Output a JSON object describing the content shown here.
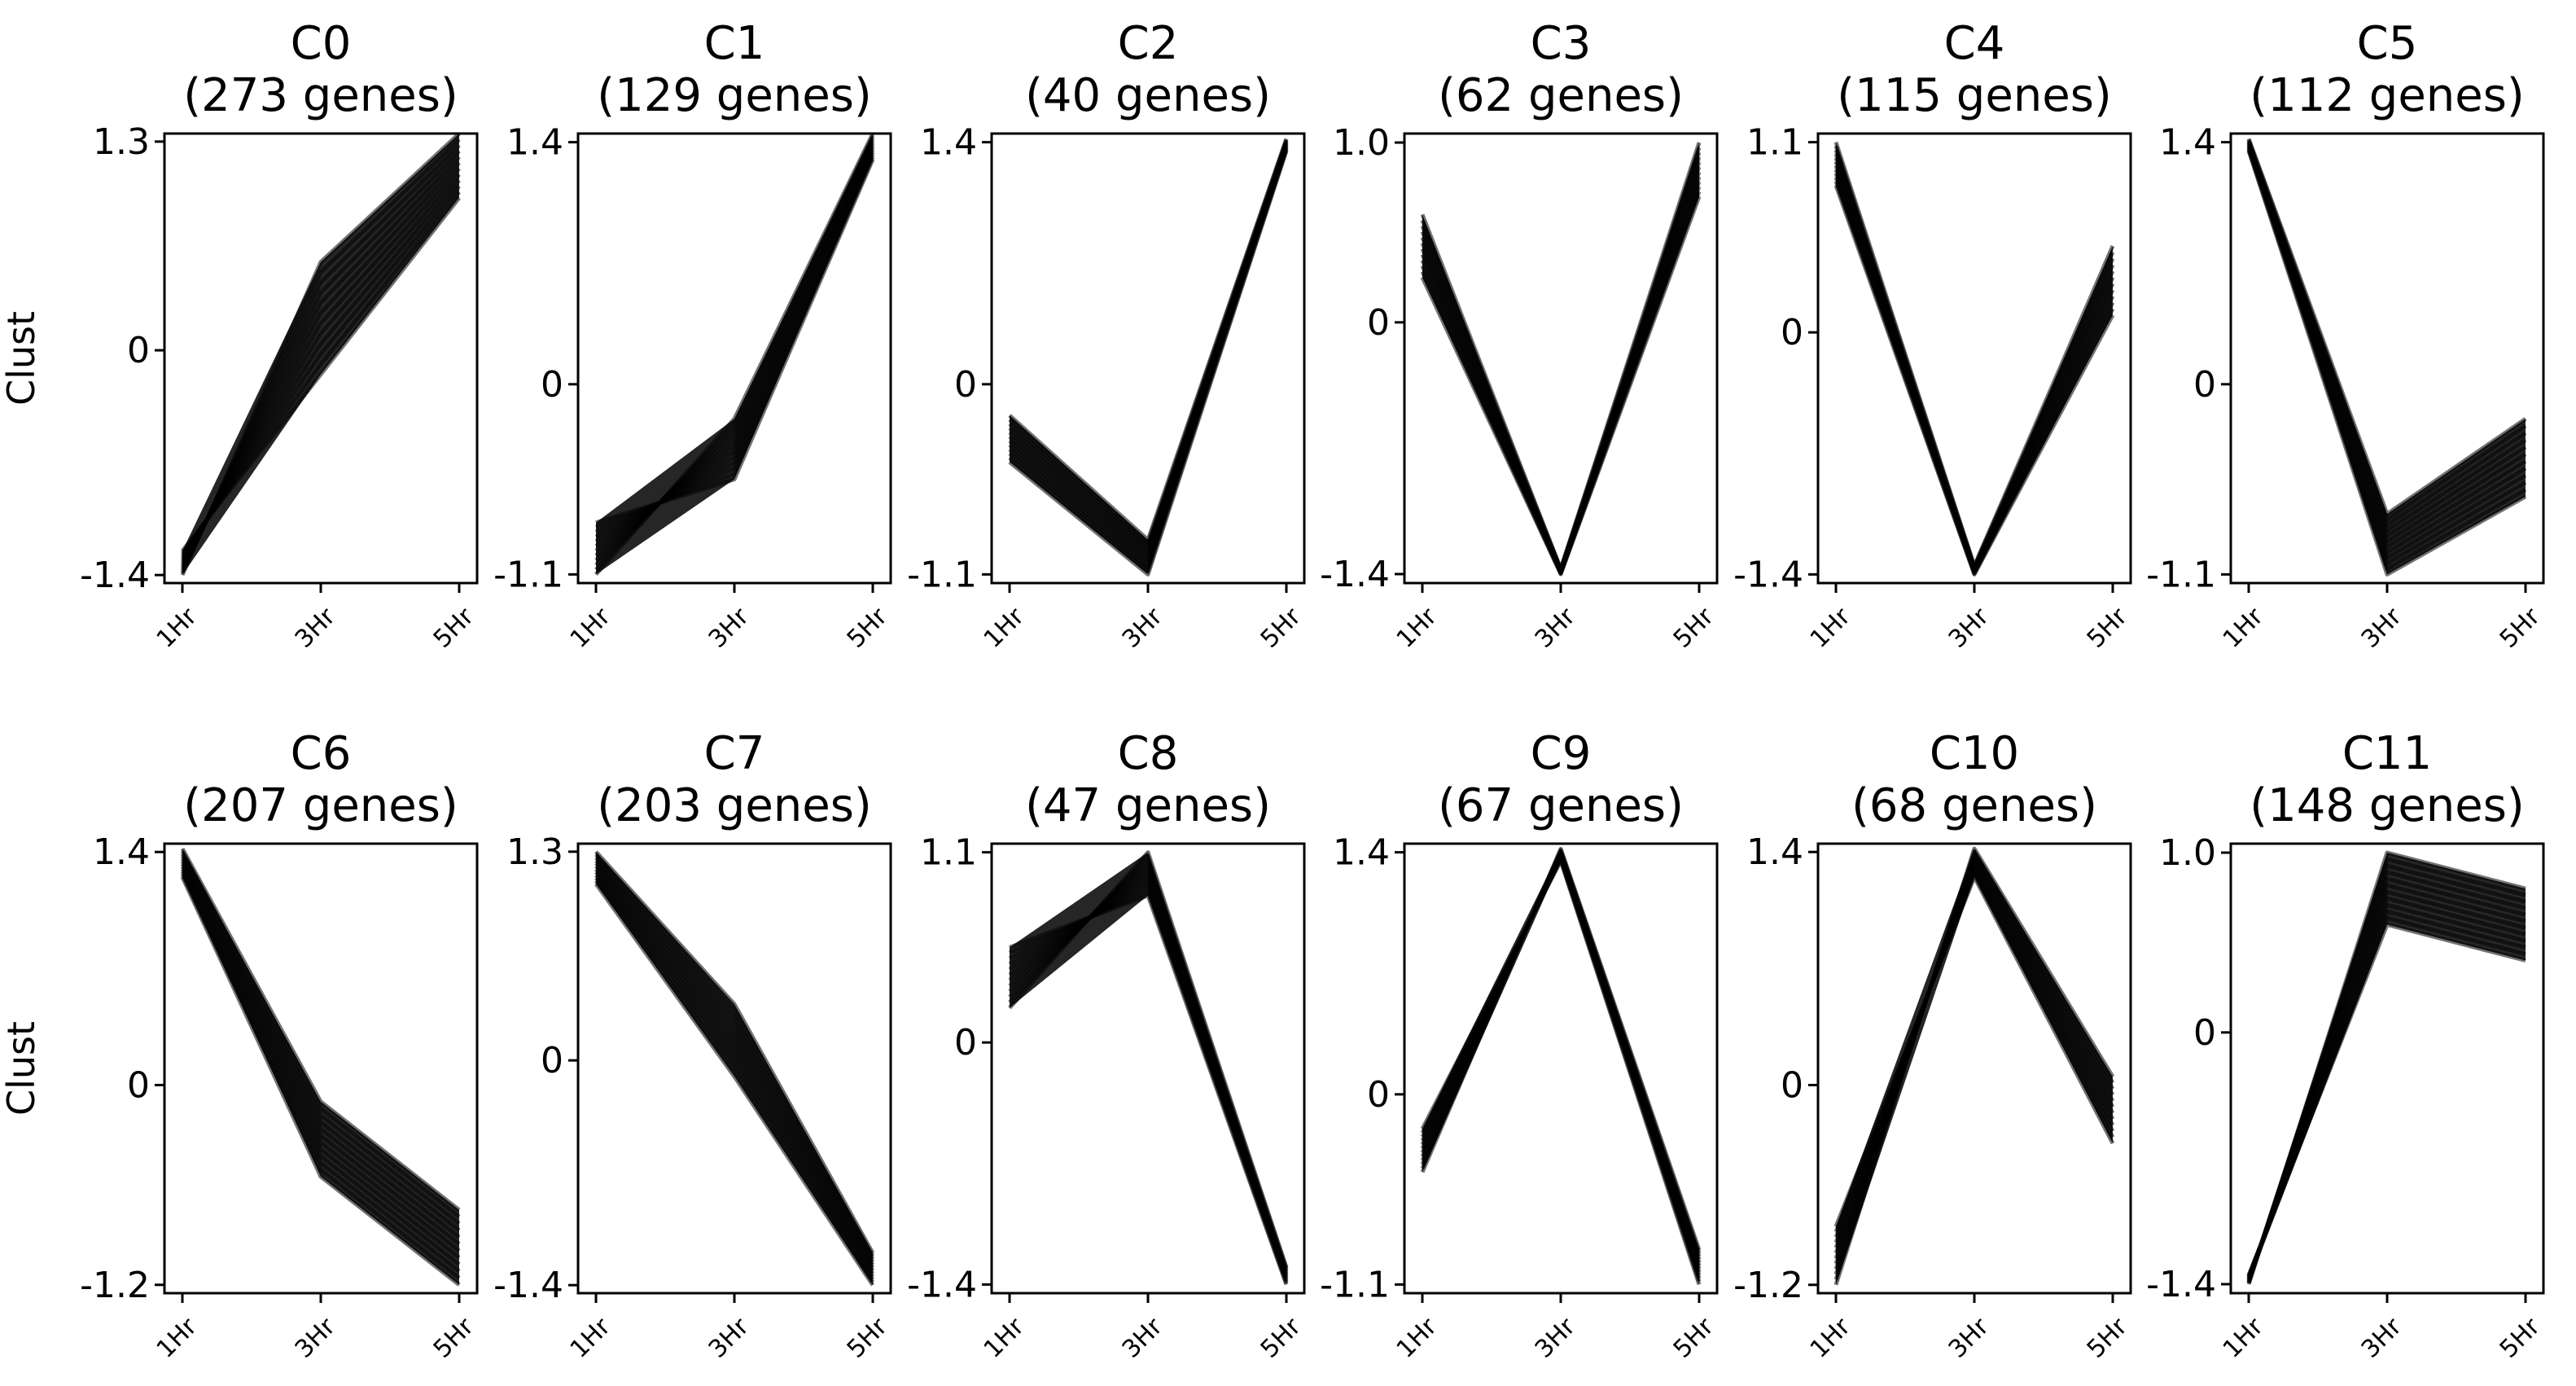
{
  "chart_data": [
    {
      "type": "line",
      "cluster": "C0",
      "gene_count": "(273 genes)",
      "ylabel": "Clust",
      "categories": [
        "1Hr",
        "3Hr",
        "5Hr"
      ],
      "yticks": [
        "1.3",
        "0",
        "-1.4"
      ],
      "ylim": [
        -1.45,
        1.35
      ],
      "envelope": {
        "low": [
          -1.4,
          -0.15,
          0.95
        ],
        "high": [
          -1.25,
          0.55,
          1.35
        ]
      },
      "colors": {
        "line": "#000000",
        "frame": "#000000"
      }
    },
    {
      "type": "line",
      "cluster": "C1",
      "gene_count": "(129 genes)",
      "ylabel": "",
      "categories": [
        "1Hr",
        "3Hr",
        "5Hr"
      ],
      "yticks": [
        "1.4",
        "0",
        "-1.1"
      ],
      "ylim": [
        -1.15,
        1.45
      ],
      "envelope": {
        "low": [
          -1.1,
          -0.55,
          1.3
        ],
        "high": [
          -0.8,
          -0.2,
          1.45
        ]
      },
      "colors": {
        "line": "#000000",
        "frame": "#000000"
      }
    },
    {
      "type": "line",
      "cluster": "C2",
      "gene_count": "(40 genes)",
      "ylabel": "",
      "categories": [
        "1Hr",
        "3Hr",
        "5Hr"
      ],
      "yticks": [
        "1.4",
        "0",
        "-1.1"
      ],
      "ylim": [
        -1.15,
        1.45
      ],
      "envelope": {
        "low": [
          -0.45,
          -1.1,
          1.35
        ],
        "high": [
          -0.18,
          -0.9,
          1.42
        ]
      },
      "colors": {
        "line": "#000000",
        "frame": "#000000"
      }
    },
    {
      "type": "line",
      "cluster": "C3",
      "gene_count": "(62 genes)",
      "ylabel": "",
      "categories": [
        "1Hr",
        "3Hr",
        "5Hr"
      ],
      "yticks": [
        "1.0",
        "0",
        "-1.4"
      ],
      "ylim": [
        -1.45,
        1.05
      ],
      "envelope": {
        "low": [
          0.25,
          -1.4,
          0.7
        ],
        "high": [
          0.6,
          -1.37,
          1.0
        ]
      },
      "colors": {
        "line": "#000000",
        "frame": "#000000"
      }
    },
    {
      "type": "line",
      "cluster": "C4",
      "gene_count": "(115 genes)",
      "ylabel": "",
      "categories": [
        "1Hr",
        "3Hr",
        "5Hr"
      ],
      "yticks": [
        "1.1",
        "0",
        "-1.4"
      ],
      "ylim": [
        -1.45,
        1.15
      ],
      "envelope": {
        "low": [
          0.85,
          -1.4,
          0.1
        ],
        "high": [
          1.1,
          -1.35,
          0.5
        ]
      },
      "colors": {
        "line": "#000000",
        "frame": "#000000"
      }
    },
    {
      "type": "line",
      "cluster": "C5",
      "gene_count": "(112 genes)",
      "ylabel": "",
      "categories": [
        "1Hr",
        "3Hr",
        "5Hr"
      ],
      "yticks": [
        "1.4",
        "0",
        "-1.1"
      ],
      "ylim": [
        -1.15,
        1.45
      ],
      "envelope": {
        "low": [
          1.35,
          -1.1,
          -0.65
        ],
        "high": [
          1.42,
          -0.75,
          -0.2
        ]
      },
      "colors": {
        "line": "#000000",
        "frame": "#000000"
      }
    },
    {
      "type": "line",
      "cluster": "C6",
      "gene_count": "(207 genes)",
      "ylabel": "Clust",
      "categories": [
        "1Hr",
        "3Hr",
        "5Hr"
      ],
      "yticks": [
        "1.4",
        "0",
        "-1.2"
      ],
      "ylim": [
        -1.25,
        1.45
      ],
      "envelope": {
        "low": [
          1.25,
          -0.55,
          -1.2
        ],
        "high": [
          1.42,
          -0.1,
          -0.75
        ]
      },
      "colors": {
        "line": "#000000",
        "frame": "#000000"
      }
    },
    {
      "type": "line",
      "cluster": "C7",
      "gene_count": "(203 genes)",
      "ylabel": "",
      "categories": [
        "1Hr",
        "3Hr",
        "5Hr"
      ],
      "yticks": [
        "1.3",
        "0",
        "-1.4"
      ],
      "ylim": [
        -1.45,
        1.35
      ],
      "envelope": {
        "low": [
          1.1,
          -0.1,
          -1.4
        ],
        "high": [
          1.3,
          0.35,
          -1.2
        ]
      },
      "colors": {
        "line": "#000000",
        "frame": "#000000"
      }
    },
    {
      "type": "line",
      "cluster": "C8",
      "gene_count": "(47 genes)",
      "ylabel": "",
      "categories": [
        "1Hr",
        "3Hr",
        "5Hr"
      ],
      "yticks": [
        "1.1",
        "0",
        "-1.4"
      ],
      "ylim": [
        -1.45,
        1.15
      ],
      "envelope": {
        "low": [
          0.2,
          0.85,
          -1.4
        ],
        "high": [
          0.55,
          1.1,
          -1.3
        ]
      },
      "colors": {
        "line": "#000000",
        "frame": "#000000"
      }
    },
    {
      "type": "line",
      "cluster": "C9",
      "gene_count": "(67 genes)",
      "ylabel": "",
      "categories": [
        "1Hr",
        "3Hr",
        "5Hr"
      ],
      "yticks": [
        "1.4",
        "0",
        "-1.1"
      ],
      "ylim": [
        -1.15,
        1.45
      ],
      "envelope": {
        "low": [
          -0.45,
          1.35,
          -1.1
        ],
        "high": [
          -0.2,
          1.42,
          -0.9
        ]
      },
      "colors": {
        "line": "#000000",
        "frame": "#000000"
      }
    },
    {
      "type": "line",
      "cluster": "C10",
      "gene_count": "(68 genes)",
      "ylabel": "",
      "categories": [
        "1Hr",
        "3Hr",
        "5Hr"
      ],
      "yticks": [
        "1.4",
        "0",
        "-1.2"
      ],
      "ylim": [
        -1.25,
        1.45
      ],
      "envelope": {
        "low": [
          -1.2,
          1.25,
          -0.35
        ],
        "high": [
          -0.85,
          1.42,
          0.05
        ]
      },
      "colors": {
        "line": "#000000",
        "frame": "#000000"
      }
    },
    {
      "type": "line",
      "cluster": "C11",
      "gene_count": "(148 genes)",
      "ylabel": "",
      "categories": [
        "1Hr",
        "3Hr",
        "5Hr"
      ],
      "yticks": [
        "1.0",
        "0",
        "-1.4"
      ],
      "ylim": [
        -1.45,
        1.05
      ],
      "envelope": {
        "low": [
          -1.4,
          0.6,
          0.4
        ],
        "high": [
          -1.35,
          1.0,
          0.8
        ]
      },
      "colors": {
        "line": "#000000",
        "frame": "#000000"
      }
    }
  ]
}
